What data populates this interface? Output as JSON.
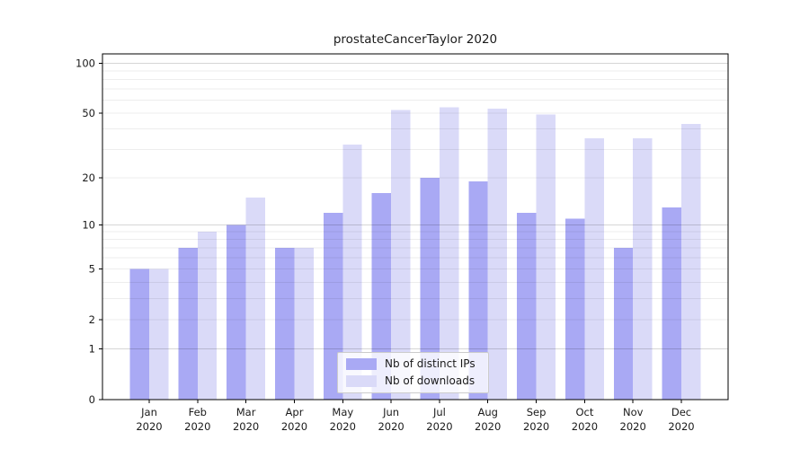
{
  "chart_data": {
    "type": "bar",
    "title": "prostateCancerTaylor 2020",
    "x_tick_months": [
      "Jan",
      "Feb",
      "Mar",
      "Apr",
      "May",
      "Jun",
      "Jul",
      "Aug",
      "Sep",
      "Oct",
      "Nov",
      "Dec"
    ],
    "x_tick_year": "2020",
    "categories": [
      "Jan 2020",
      "Feb 2020",
      "Mar 2020",
      "Apr 2020",
      "May 2020",
      "Jun 2020",
      "Jul 2020",
      "Aug 2020",
      "Sep 2020",
      "Oct 2020",
      "Nov 2020",
      "Dec 2020"
    ],
    "series": [
      {
        "key": "distinct-ips",
        "name": "Nb of distinct IPs",
        "color": "#a9a9f4",
        "values": [
          5,
          7,
          10,
          7,
          12,
          16,
          20,
          19,
          12,
          11,
          7,
          13
        ]
      },
      {
        "key": "downloads",
        "name": "Nb of downloads",
        "color": "#dadaf8",
        "values": [
          5,
          9,
          15,
          7,
          32,
          52,
          54,
          53,
          49,
          35,
          35,
          43
        ]
      }
    ],
    "yscale": "log1p",
    "ylim": [
      0,
      113
    ],
    "yticks": [
      0,
      1,
      2,
      5,
      10,
      20,
      50,
      100
    ],
    "major_gridlines": [
      1,
      10,
      100
    ],
    "minor_gridlines": [
      2,
      3,
      4,
      5,
      6,
      7,
      8,
      9,
      20,
      30,
      40,
      50,
      60,
      70,
      80,
      90
    ],
    "grid": true,
    "legend_position": "lower-center",
    "colors": {
      "axis": "#000000",
      "text": "#1a1a1a",
      "grid_minor": "rgba(0,0,0,0.07)",
      "grid_major": "rgba(0,0,0,0.16)",
      "background": "#ffffff"
    }
  }
}
